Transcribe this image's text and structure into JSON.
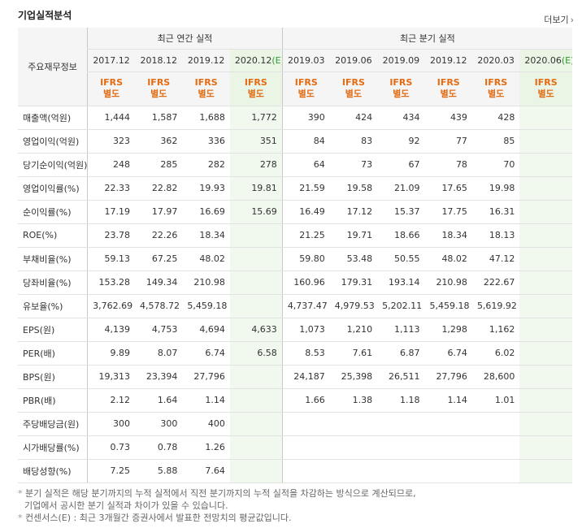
{
  "section": {
    "title": "기업실적분석",
    "more_label": "더보기"
  },
  "header": {
    "corner": "주요재무정보",
    "group_annual": "최근 연간 실적",
    "group_quarter": "최근 분기 실적",
    "annual_periods": [
      "2017.12",
      "2018.12",
      "2019.12",
      "2020.12(E)"
    ],
    "quarter_periods": [
      "2019.03",
      "2019.06",
      "2019.09",
      "2019.12",
      "2020.03",
      "2020.06(E)"
    ],
    "ifrs_top": "IFRS",
    "ifrs_bottom": "별도"
  },
  "rows": [
    {
      "label": "매출액(억원)",
      "values": [
        "1,444",
        "1,587",
        "1,688",
        "1,772",
        "390",
        "424",
        "434",
        "439",
        "428",
        ""
      ]
    },
    {
      "label": "영업이익(억원)",
      "values": [
        "323",
        "362",
        "336",
        "351",
        "84",
        "83",
        "92",
        "77",
        "85",
        ""
      ]
    },
    {
      "label": "당기순이익(억원)",
      "values": [
        "248",
        "285",
        "282",
        "278",
        "64",
        "73",
        "67",
        "78",
        "70",
        ""
      ]
    },
    {
      "label": "영업이익률(%)",
      "values": [
        "22.33",
        "22.82",
        "19.93",
        "19.81",
        "21.59",
        "19.58",
        "21.09",
        "17.65",
        "19.98",
        ""
      ]
    },
    {
      "label": "순이익률(%)",
      "values": [
        "17.19",
        "17.97",
        "16.69",
        "15.69",
        "16.49",
        "17.12",
        "15.37",
        "17.75",
        "16.31",
        ""
      ]
    },
    {
      "label": "ROE(%)",
      "values": [
        "23.78",
        "22.26",
        "18.34",
        "",
        "21.25",
        "19.71",
        "18.66",
        "18.34",
        "18.13",
        ""
      ]
    },
    {
      "label": "부채비율(%)",
      "values": [
        "59.13",
        "67.25",
        "48.02",
        "",
        "59.80",
        "53.48",
        "50.55",
        "48.02",
        "47.12",
        ""
      ]
    },
    {
      "label": "당좌비율(%)",
      "values": [
        "153.28",
        "149.34",
        "210.98",
        "",
        "160.96",
        "179.31",
        "193.14",
        "210.98",
        "222.67",
        ""
      ]
    },
    {
      "label": "유보율(%)",
      "values": [
        "3,762.69",
        "4,578.72",
        "5,459.18",
        "",
        "4,737.47",
        "4,979.53",
        "5,202.11",
        "5,459.18",
        "5,619.92",
        ""
      ]
    },
    {
      "label": "EPS(원)",
      "values": [
        "4,139",
        "4,753",
        "4,694",
        "4,633",
        "1,073",
        "1,210",
        "1,113",
        "1,298",
        "1,162",
        ""
      ]
    },
    {
      "label": "PER(배)",
      "values": [
        "9.89",
        "8.07",
        "6.74",
        "6.58",
        "8.53",
        "7.61",
        "6.87",
        "6.74",
        "6.02",
        ""
      ]
    },
    {
      "label": "BPS(원)",
      "values": [
        "19,313",
        "23,394",
        "27,796",
        "",
        "24,187",
        "25,398",
        "26,511",
        "27,796",
        "28,600",
        ""
      ]
    },
    {
      "label": "PBR(배)",
      "values": [
        "2.12",
        "1.64",
        "1.14",
        "",
        "1.66",
        "1.38",
        "1.18",
        "1.14",
        "1.01",
        ""
      ]
    },
    {
      "label": "주당배당금(원)",
      "values": [
        "300",
        "300",
        "400",
        "",
        "",
        "",
        "",
        "",
        "",
        ""
      ]
    },
    {
      "label": "시가배당률(%)",
      "values": [
        "0.73",
        "0.78",
        "1.26",
        "",
        "",
        "",
        "",
        "",
        "",
        ""
      ]
    },
    {
      "label": "배당성향(%)",
      "values": [
        "7.25",
        "5.88",
        "7.64",
        "",
        "",
        "",
        "",
        "",
        "",
        ""
      ]
    }
  ],
  "notes": [
    "분기 실적은 해당 분기까지의 누적 실적에서 직전 분기까지의 누적 실적을 차감하는 방식으로 계산되므로,",
    "기업에서 공시한 분기 실적과 차이가 있을 수 있습니다.",
    "컨센서스(E) : 최근 3개월간 증권사에서 발표한 전망치의 평균값입니다."
  ]
}
